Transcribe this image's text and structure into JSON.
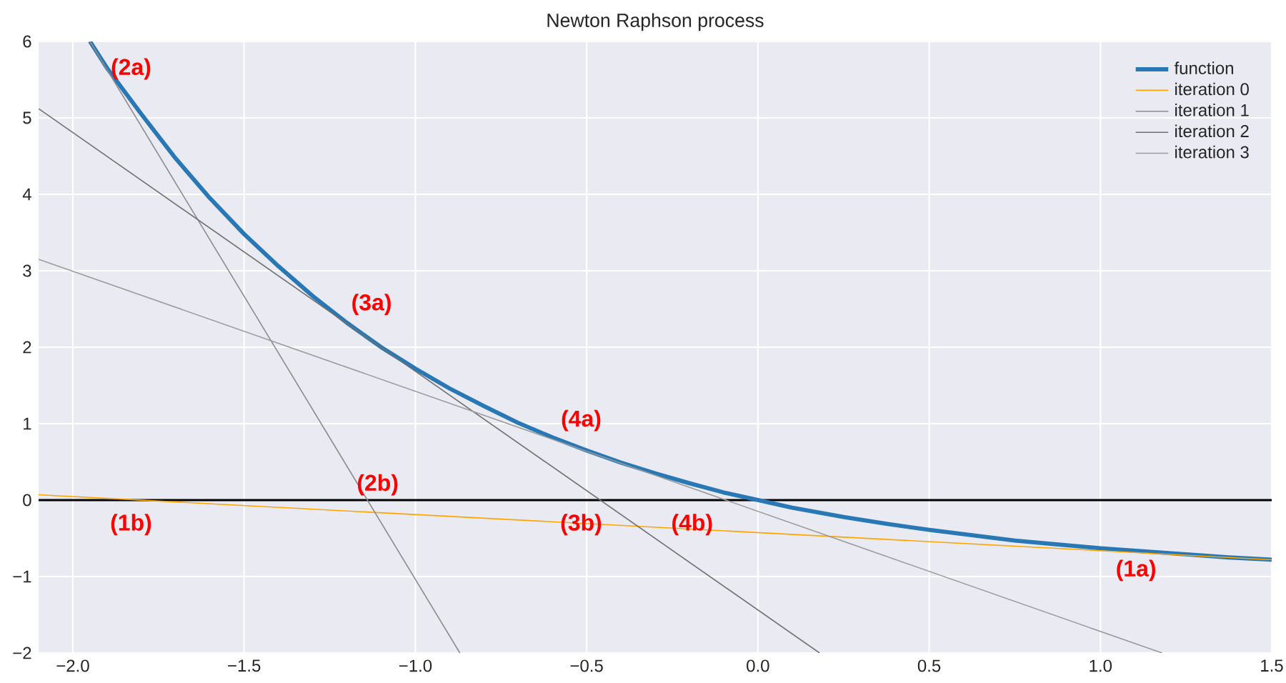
{
  "chart_data": {
    "type": "line",
    "title": "Newton Raphson process",
    "xlim": [
      -2.1,
      1.5
    ],
    "ylim": [
      -2,
      6
    ],
    "xticks": [
      {
        "value": -2.0,
        "label": "−2.0"
      },
      {
        "value": -1.5,
        "label": "−1.5"
      },
      {
        "value": -1.0,
        "label": "−1.0"
      },
      {
        "value": -0.5,
        "label": "−0.5"
      },
      {
        "value": 0,
        "label": "0.0"
      },
      0.5,
      {
        "value": 1,
        "label": "1.0"
      },
      1.5
    ],
    "yticks": [
      {
        "value": -2,
        "label": "−2"
      },
      {
        "value": -1,
        "label": "−1"
      },
      0,
      1,
      2,
      3,
      4,
      5,
      6
    ],
    "grid": true,
    "legend": "top right",
    "marker": "none",
    "line_style": "solid",
    "series": [
      {
        "name": "function",
        "color": "#2878b5",
        "x": [
          -1.95,
          -1.9,
          -1.8,
          -1.7,
          -1.6,
          -1.5,
          -1.4,
          -1.3,
          -1.2,
          -1.1,
          -1.0,
          -0.9,
          -0.8,
          -0.7,
          -0.6,
          -0.5,
          -0.4,
          -0.3,
          -0.2,
          -0.1,
          0,
          0.1,
          0.25,
          0.375,
          0.5,
          0.625,
          0.75,
          0.875,
          1.0,
          1.125,
          1.25,
          1.375,
          1.5
        ],
        "values": [
          6.0,
          5.65,
          5.05,
          4.47,
          3.95,
          3.48,
          3.06,
          2.67,
          2.32,
          2.0,
          1.72,
          1.46,
          1.23,
          1.01,
          0.82,
          0.65,
          0.49,
          0.35,
          0.22,
          0.1,
          0,
          -0.1,
          -0.22,
          -0.31,
          -0.39,
          -0.46,
          -0.53,
          -0.58,
          -0.63,
          -0.67,
          -0.71,
          -0.75,
          -0.78
        ]
      },
      {
        "name": "iteration 0",
        "color": "#ffa500",
        "x": [
          -2.1,
          1.5
        ],
        "values": [
          0.07,
          -0.78
        ]
      },
      {
        "name": "iteration 1",
        "color": "#8c8c8c",
        "x": [
          -1.95,
          -0.87
        ],
        "values": [
          6.0,
          -2.0
        ]
      },
      {
        "name": "iteration 2",
        "color": "#707070",
        "x": [
          -2.1,
          0.18
        ],
        "values": [
          5.12,
          -2.0
        ]
      },
      {
        "name": "iteration 3",
        "color": "#9a9a9a",
        "x": [
          -2.1,
          1.18
        ],
        "values": [
          3.15,
          -2.0
        ]
      }
    ],
    "ref_lines": [
      {
        "axis": "y",
        "value": 0,
        "color": "#000000"
      }
    ],
    "annotations": [
      "(1a)",
      "(1b)",
      "(2a)",
      "(2b)",
      "(3a)",
      "(3b)",
      "(4a)",
      "(4b)"
    ]
  }
}
